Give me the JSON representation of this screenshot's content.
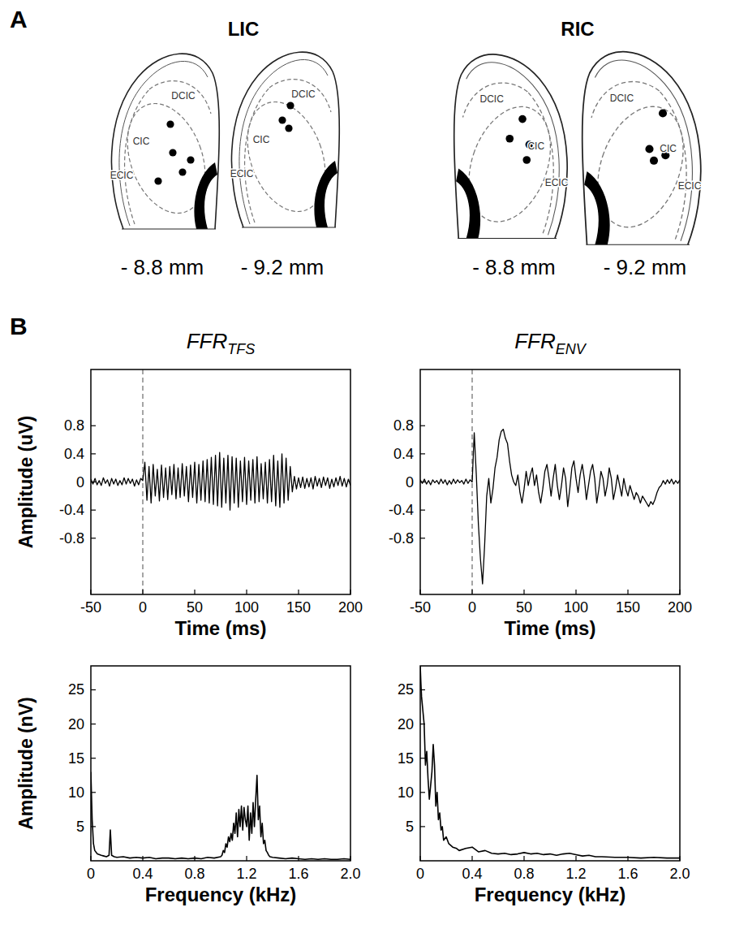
{
  "panel_a": {
    "letter": "A",
    "groups": [
      {
        "label": "LIC",
        "slices": [
          {
            "level": "- 8.8 mm",
            "regions": [
              "DCIC",
              "CIC",
              "ECIC"
            ]
          },
          {
            "level": "- 9.2 mm",
            "regions": [
              "DCIC",
              "CIC",
              "ECIC"
            ]
          }
        ]
      },
      {
        "label": "RIC",
        "slices": [
          {
            "level": "- 8.8 mm",
            "regions": [
              "DCIC",
              "CIC",
              "ECIC"
            ]
          },
          {
            "level": "- 9.2 mm",
            "regions": [
              "DCIC",
              "CIC",
              "ECIC"
            ]
          }
        ]
      }
    ]
  },
  "panel_b": {
    "letter": "B"
  },
  "chart_data": [
    {
      "type": "line",
      "title": "FFR",
      "title_subscript": "TFS",
      "x_label": "Time (ms)",
      "y_label": "Amplitude (uV)",
      "color": "#000000",
      "grid": false,
      "onset": 0,
      "xlim": [
        -50,
        200
      ],
      "ylim": [
        -1.6,
        1.6
      ],
      "xticks": [
        -50,
        0,
        50,
        100,
        150,
        200
      ],
      "yticks": [
        -0.8,
        -0.4,
        0,
        0.4,
        0.8
      ],
      "x": [
        -50,
        -48,
        -46,
        -44,
        -42,
        -40,
        -38,
        -36,
        -34,
        -32,
        -30,
        -28,
        -26,
        -24,
        -22,
        -20,
        -18,
        -16,
        -14,
        -12,
        -10,
        -8,
        -6,
        -4,
        -2,
        0,
        2,
        4,
        6,
        8,
        10,
        12,
        14,
        16,
        18,
        20,
        22,
        24,
        26,
        28,
        30,
        32,
        34,
        36,
        38,
        40,
        42,
        44,
        46,
        48,
        50,
        52,
        54,
        56,
        58,
        60,
        62,
        64,
        66,
        68,
        70,
        72,
        74,
        76,
        78,
        80,
        82,
        84,
        86,
        88,
        90,
        92,
        94,
        96,
        98,
        100,
        102,
        104,
        106,
        108,
        110,
        112,
        114,
        116,
        118,
        120,
        122,
        124,
        126,
        128,
        130,
        132,
        134,
        136,
        138,
        140,
        142,
        144,
        146,
        148,
        150,
        152,
        154,
        156,
        158,
        160,
        162,
        164,
        166,
        168,
        170,
        172,
        174,
        176,
        178,
        180,
        182,
        184,
        186,
        188,
        190,
        192,
        194,
        196,
        198,
        200
      ],
      "values": [
        0.04,
        -0.03,
        0.05,
        -0.04,
        0.02,
        -0.05,
        0.06,
        -0.02,
        0.03,
        -0.06,
        0.05,
        -0.03,
        0.04,
        -0.05,
        0.02,
        -0.04,
        0.06,
        -0.03,
        0.05,
        -0.02,
        0.04,
        -0.06,
        0.03,
        -0.04,
        0.05,
        0.02,
        0.28,
        -0.26,
        0.22,
        -0.3,
        0.25,
        -0.2,
        0.18,
        -0.27,
        0.24,
        -0.22,
        0.2,
        -0.25,
        0.22,
        -0.18,
        0.25,
        -0.24,
        0.2,
        -0.22,
        0.26,
        -0.2,
        0.22,
        -0.28,
        0.24,
        -0.22,
        0.28,
        -0.3,
        0.25,
        -0.26,
        0.3,
        -0.28,
        0.32,
        -0.3,
        0.35,
        -0.32,
        0.38,
        -0.34,
        0.42,
        -0.36,
        0.34,
        -0.3,
        0.38,
        -0.4,
        0.36,
        -0.3,
        0.34,
        -0.36,
        0.3,
        -0.28,
        0.35,
        -0.32,
        0.3,
        -0.26,
        0.32,
        -0.3,
        0.36,
        -0.28,
        0.26,
        -0.24,
        0.28,
        -0.3,
        0.32,
        -0.28,
        0.38,
        -0.34,
        0.3,
        -0.36,
        0.4,
        -0.3,
        0.34,
        -0.26,
        0.22,
        -0.14,
        0.08,
        -0.1,
        0.06,
        -0.08,
        0.07,
        -0.09,
        0.05,
        -0.07,
        0.06,
        -0.1,
        0.08,
        -0.06,
        0.05,
        -0.08,
        0.07,
        -0.05,
        0.06,
        -0.09,
        0.04,
        -0.07,
        0.06,
        -0.05,
        0.08,
        -0.06,
        0.05,
        -0.07,
        0.04,
        -0.05
      ]
    },
    {
      "type": "line",
      "title": "FFR",
      "title_subscript": "ENV",
      "x_label": "Time (ms)",
      "color": "#000000",
      "grid": false,
      "onset": 0,
      "xlim": [
        -50,
        200
      ],
      "ylim": [
        -1.6,
        1.6
      ],
      "xticks": [
        -50,
        0,
        50,
        100,
        150,
        200
      ],
      "yticks": [
        -0.8,
        -0.4,
        0,
        0.4,
        0.8
      ],
      "x": [
        -50,
        -48,
        -46,
        -44,
        -42,
        -40,
        -38,
        -36,
        -34,
        -32,
        -30,
        -28,
        -26,
        -24,
        -22,
        -20,
        -18,
        -16,
        -14,
        -12,
        -10,
        -8,
        -6,
        -4,
        -2,
        0,
        2,
        4,
        6,
        8,
        10,
        12,
        14,
        16,
        18,
        20,
        22,
        24,
        26,
        28,
        30,
        32,
        34,
        36,
        38,
        40,
        42,
        44,
        46,
        48,
        50,
        52,
        54,
        56,
        58,
        60,
        62,
        64,
        66,
        68,
        70,
        72,
        74,
        76,
        78,
        80,
        82,
        84,
        86,
        88,
        90,
        92,
        94,
        96,
        98,
        100,
        102,
        104,
        106,
        108,
        110,
        112,
        114,
        116,
        118,
        120,
        122,
        124,
        126,
        128,
        130,
        132,
        134,
        136,
        138,
        140,
        142,
        144,
        146,
        148,
        150,
        152,
        154,
        156,
        158,
        160,
        162,
        164,
        166,
        168,
        170,
        172,
        174,
        176,
        178,
        180,
        182,
        184,
        186,
        188,
        190,
        192,
        194,
        196,
        198,
        200
      ],
      "values": [
        0.03,
        -0.02,
        0.04,
        -0.03,
        0.02,
        -0.04,
        0.03,
        -0.01,
        0.02,
        -0.03,
        0.04,
        -0.02,
        0.03,
        -0.04,
        0.02,
        -0.03,
        0.04,
        -0.02,
        0.03,
        -0.01,
        0.02,
        -0.03,
        0.04,
        -0.02,
        0.03,
        0.0,
        0.7,
        0.1,
        -0.6,
        -1.1,
        -1.45,
        -0.9,
        -0.2,
        0.05,
        -0.3,
        -0.1,
        0.2,
        0.35,
        0.6,
        0.72,
        0.75,
        0.62,
        0.55,
        0.3,
        0.1,
        0.0,
        -0.05,
        0.1,
        -0.15,
        -0.3,
        -0.1,
        0.15,
        -0.05,
        0.1,
        0.2,
        -0.05,
        0.1,
        -0.15,
        -0.3,
        -0.1,
        0.15,
        0.25,
        0.05,
        -0.2,
        0.05,
        0.25,
        -0.05,
        -0.25,
        -0.05,
        0.2,
        0.05,
        -0.35,
        -0.1,
        0.2,
        0.3,
        0.05,
        -0.15,
        0.1,
        0.25,
        0.05,
        -0.25,
        -0.05,
        0.15,
        0.25,
        0.05,
        -0.3,
        -0.1,
        0.15,
        0.05,
        -0.2,
        -0.05,
        0.2,
        0.05,
        -0.25,
        -0.1,
        0.1,
        -0.05,
        -0.2,
        0.05,
        -0.1,
        -0.2,
        -0.05,
        -0.15,
        -0.25,
        -0.15,
        -0.2,
        -0.3,
        -0.2,
        -0.25,
        -0.3,
        -0.35,
        -0.28,
        -0.32,
        -0.25,
        -0.15,
        -0.08,
        -0.05,
        0.02,
        -0.03,
        0.03,
        -0.02,
        0.04,
        -0.03,
        0.02,
        -0.02,
        0.03
      ]
    },
    {
      "type": "line",
      "x_label": "Frequency (kHz)",
      "y_label": "Amplitude (nV)",
      "color": "#000000",
      "grid": false,
      "xlim": [
        0,
        2
      ],
      "ylim": [
        0,
        28.5
      ],
      "xticks": [
        0,
        0.4,
        0.8,
        1.2,
        1.6,
        {
          "value": 2,
          "label": "2.0"
        }
      ],
      "yticks": [
        5,
        10,
        15,
        20,
        25
      ],
      "x": [
        0,
        0.01,
        0.02,
        0.03,
        0.05,
        0.08,
        0.1,
        0.12,
        0.14,
        0.15,
        0.16,
        0.18,
        0.2,
        0.25,
        0.3,
        0.35,
        0.4,
        0.45,
        0.5,
        0.55,
        0.6,
        0.65,
        0.7,
        0.75,
        0.8,
        0.85,
        0.9,
        0.95,
        1.0,
        1.01,
        1.02,
        1.03,
        1.04,
        1.05,
        1.06,
        1.07,
        1.08,
        1.09,
        1.1,
        1.11,
        1.12,
        1.13,
        1.14,
        1.15,
        1.16,
        1.17,
        1.18,
        1.19,
        1.2,
        1.21,
        1.22,
        1.23,
        1.24,
        1.25,
        1.26,
        1.27,
        1.28,
        1.29,
        1.3,
        1.31,
        1.32,
        1.33,
        1.34,
        1.35,
        1.36,
        1.37,
        1.38,
        1.4,
        1.45,
        1.5,
        1.55,
        1.6,
        1.65,
        1.7,
        1.75,
        1.8,
        1.85,
        1.9,
        1.95,
        2.0
      ],
      "values": [
        13,
        6,
        2.5,
        1.5,
        1.0,
        0.8,
        0.7,
        0.6,
        0.8,
        4.5,
        0.8,
        0.6,
        0.5,
        0.6,
        0.4,
        0.5,
        0.4,
        0.5,
        0.3,
        0.4,
        0.4,
        0.3,
        0.4,
        0.3,
        0.4,
        0.3,
        0.5,
        0.4,
        0.6,
        0.8,
        1.5,
        1.2,
        2.5,
        2,
        3.5,
        2.8,
        4,
        3,
        5.5,
        4,
        7,
        3.5,
        7.5,
        5,
        8,
        4.5,
        7.8,
        6,
        5,
        8,
        3,
        7,
        4,
        8.5,
        5,
        9,
        12.5,
        6,
        8,
        3.5,
        5.5,
        2.5,
        3,
        1.5,
        1.2,
        0.8,
        0.6,
        0.5,
        0.4,
        0.3,
        0.4,
        0.3,
        0.2,
        0.3,
        0.2,
        0.3,
        0.2,
        0.2,
        0.3,
        0.2
      ]
    },
    {
      "type": "line",
      "x_label": "Frequency (kHz)",
      "color": "#000000",
      "grid": false,
      "xlim": [
        0,
        2
      ],
      "ylim": [
        0,
        28.5
      ],
      "xticks": [
        0,
        0.4,
        0.8,
        1.2,
        1.6,
        {
          "value": 2,
          "label": "2.0"
        }
      ],
      "yticks": [
        5,
        10,
        15,
        20,
        25
      ],
      "x": [
        0,
        0.005,
        0.01,
        0.02,
        0.03,
        0.04,
        0.05,
        0.06,
        0.07,
        0.08,
        0.09,
        0.1,
        0.11,
        0.12,
        0.13,
        0.14,
        0.15,
        0.16,
        0.17,
        0.18,
        0.2,
        0.22,
        0.25,
        0.28,
        0.3,
        0.35,
        0.4,
        0.45,
        0.5,
        0.55,
        0.6,
        0.65,
        0.7,
        0.75,
        0.8,
        0.85,
        0.9,
        0.95,
        1.0,
        1.05,
        1.1,
        1.15,
        1.2,
        1.25,
        1.3,
        1.35,
        1.4,
        1.5,
        1.6,
        1.7,
        1.8,
        1.9,
        2.0
      ],
      "values": [
        28.5,
        26,
        24,
        22,
        20,
        14,
        16,
        12,
        9,
        11,
        13,
        17,
        14,
        8,
        10,
        6,
        7,
        4.5,
        5,
        3,
        3.5,
        2.5,
        2,
        1.8,
        1.5,
        1.8,
        2,
        1.3,
        1.5,
        1.1,
        1.0,
        1.1,
        0.9,
        1.0,
        1.2,
        1.0,
        1.1,
        0.9,
        1.0,
        0.8,
        1.0,
        1.1,
        0.9,
        0.7,
        0.8,
        0.6,
        0.6,
        0.5,
        0.5,
        0.4,
        0.5,
        0.4,
        0.4
      ]
    }
  ]
}
